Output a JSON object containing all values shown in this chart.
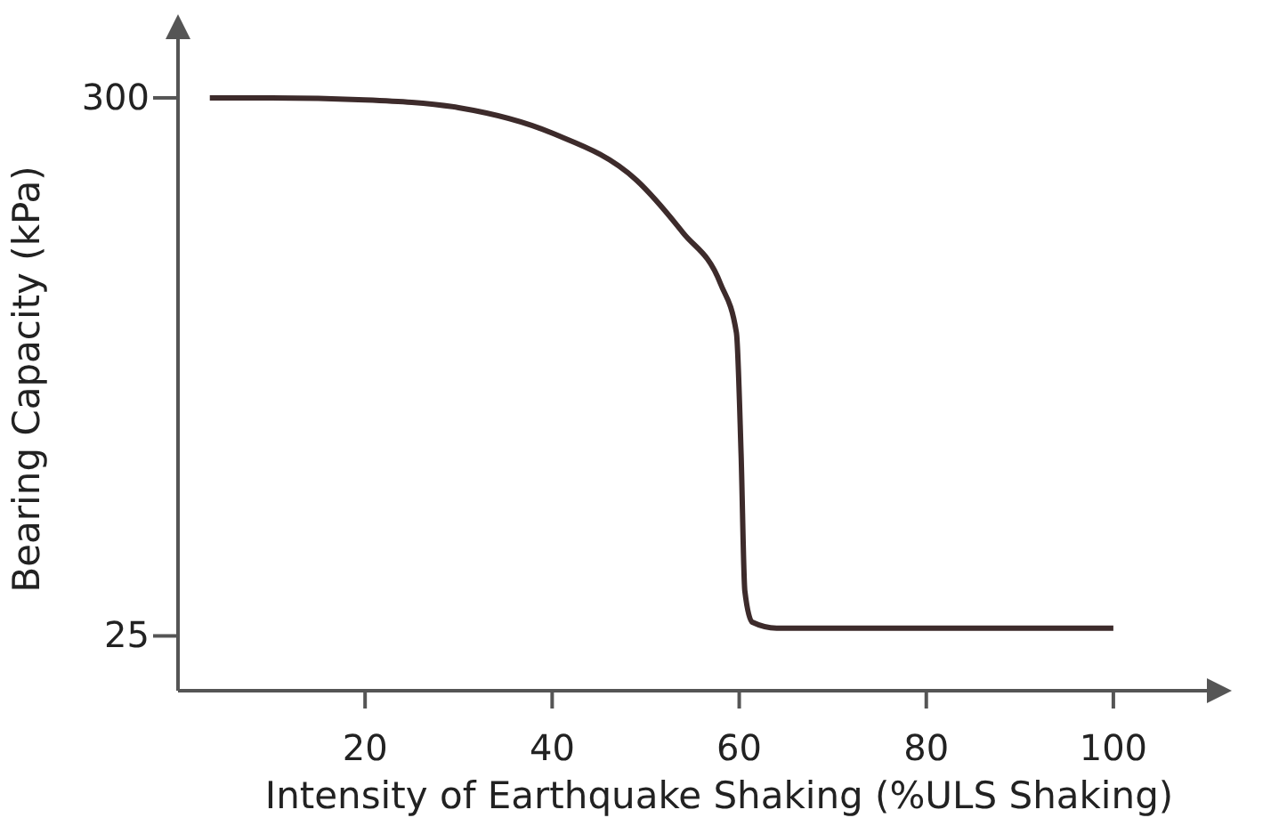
{
  "chart_data": {
    "type": "line",
    "xlabel": "Intensity of Earthquake Shaking (%ULS Shaking)",
    "ylabel": "Bearing Capacity (kPa)",
    "xlim": [
      0,
      110
    ],
    "ylim": [
      -3,
      330
    ],
    "xticks": [
      20,
      40,
      60,
      80,
      100
    ],
    "yticks": [
      25,
      300
    ],
    "grid": false,
    "marker": "none",
    "line_style": "solid",
    "series": [
      {
        "color": "#3d2b2b",
        "x": [
          3.4,
          10,
          20,
          30,
          40,
          49,
          54,
          58,
          59.7,
          60.2,
          60.6,
          61.4,
          64,
          80,
          100
        ],
        "values": [
          300,
          300,
          299,
          295,
          282,
          258,
          231,
          205,
          180,
          118,
          48,
          32,
          29,
          29,
          29
        ]
      }
    ]
  }
}
